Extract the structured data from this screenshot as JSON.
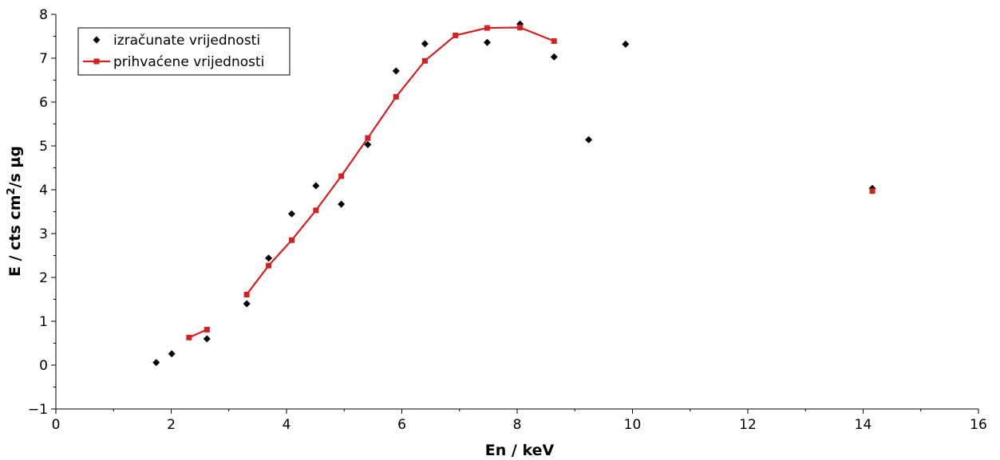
{
  "chart_data": {
    "type": "scatter",
    "xlabel": "En / keV",
    "ylabel_main": "E / cts cm",
    "ylabel_sup": "2",
    "ylabel_tail": "/s µg",
    "xlim": [
      0,
      16
    ],
    "ylim": [
      -1,
      8
    ],
    "xticks": [
      0,
      2,
      4,
      6,
      8,
      10,
      12,
      14,
      16
    ],
    "yticks": [
      -1,
      0,
      1,
      2,
      3,
      4,
      5,
      6,
      7,
      8
    ],
    "grid": false,
    "legend_position": "top-left",
    "series": [
      {
        "name": "izračunate vrijednosti",
        "style": "markers",
        "marker": "diamond",
        "color": "#000000",
        "points": [
          [
            1.74,
            0.06
          ],
          [
            2.01,
            0.26
          ],
          [
            2.62,
            0.6
          ],
          [
            3.31,
            1.4
          ],
          [
            3.69,
            2.44
          ],
          [
            4.09,
            3.45
          ],
          [
            4.51,
            4.09
          ],
          [
            4.95,
            3.67
          ],
          [
            5.41,
            5.03
          ],
          [
            5.9,
            6.71
          ],
          [
            6.4,
            7.33
          ],
          [
            7.48,
            7.36
          ],
          [
            8.05,
            7.78
          ],
          [
            8.64,
            7.03
          ],
          [
            9.24,
            5.14
          ],
          [
            9.88,
            7.32
          ],
          [
            14.16,
            4.03
          ]
        ]
      },
      {
        "name": "prihvaćene vrijednosti",
        "style": "line-markers",
        "marker": "square",
        "color": "#d42020",
        "segments": [
          [
            [
              2.31,
              0.63
            ],
            [
              2.62,
              0.81
            ]
          ],
          [
            [
              3.31,
              1.61
            ],
            [
              3.69,
              2.27
            ],
            [
              4.09,
              2.85
            ],
            [
              4.51,
              3.53
            ],
            [
              4.95,
              4.31
            ],
            [
              5.41,
              5.18
            ],
            [
              5.9,
              6.12
            ],
            [
              6.4,
              6.94
            ],
            [
              6.93,
              7.52
            ],
            [
              7.48,
              7.69
            ],
            [
              8.05,
              7.7
            ],
            [
              8.64,
              7.39
            ]
          ],
          [
            [
              14.16,
              3.97
            ]
          ]
        ]
      }
    ]
  }
}
